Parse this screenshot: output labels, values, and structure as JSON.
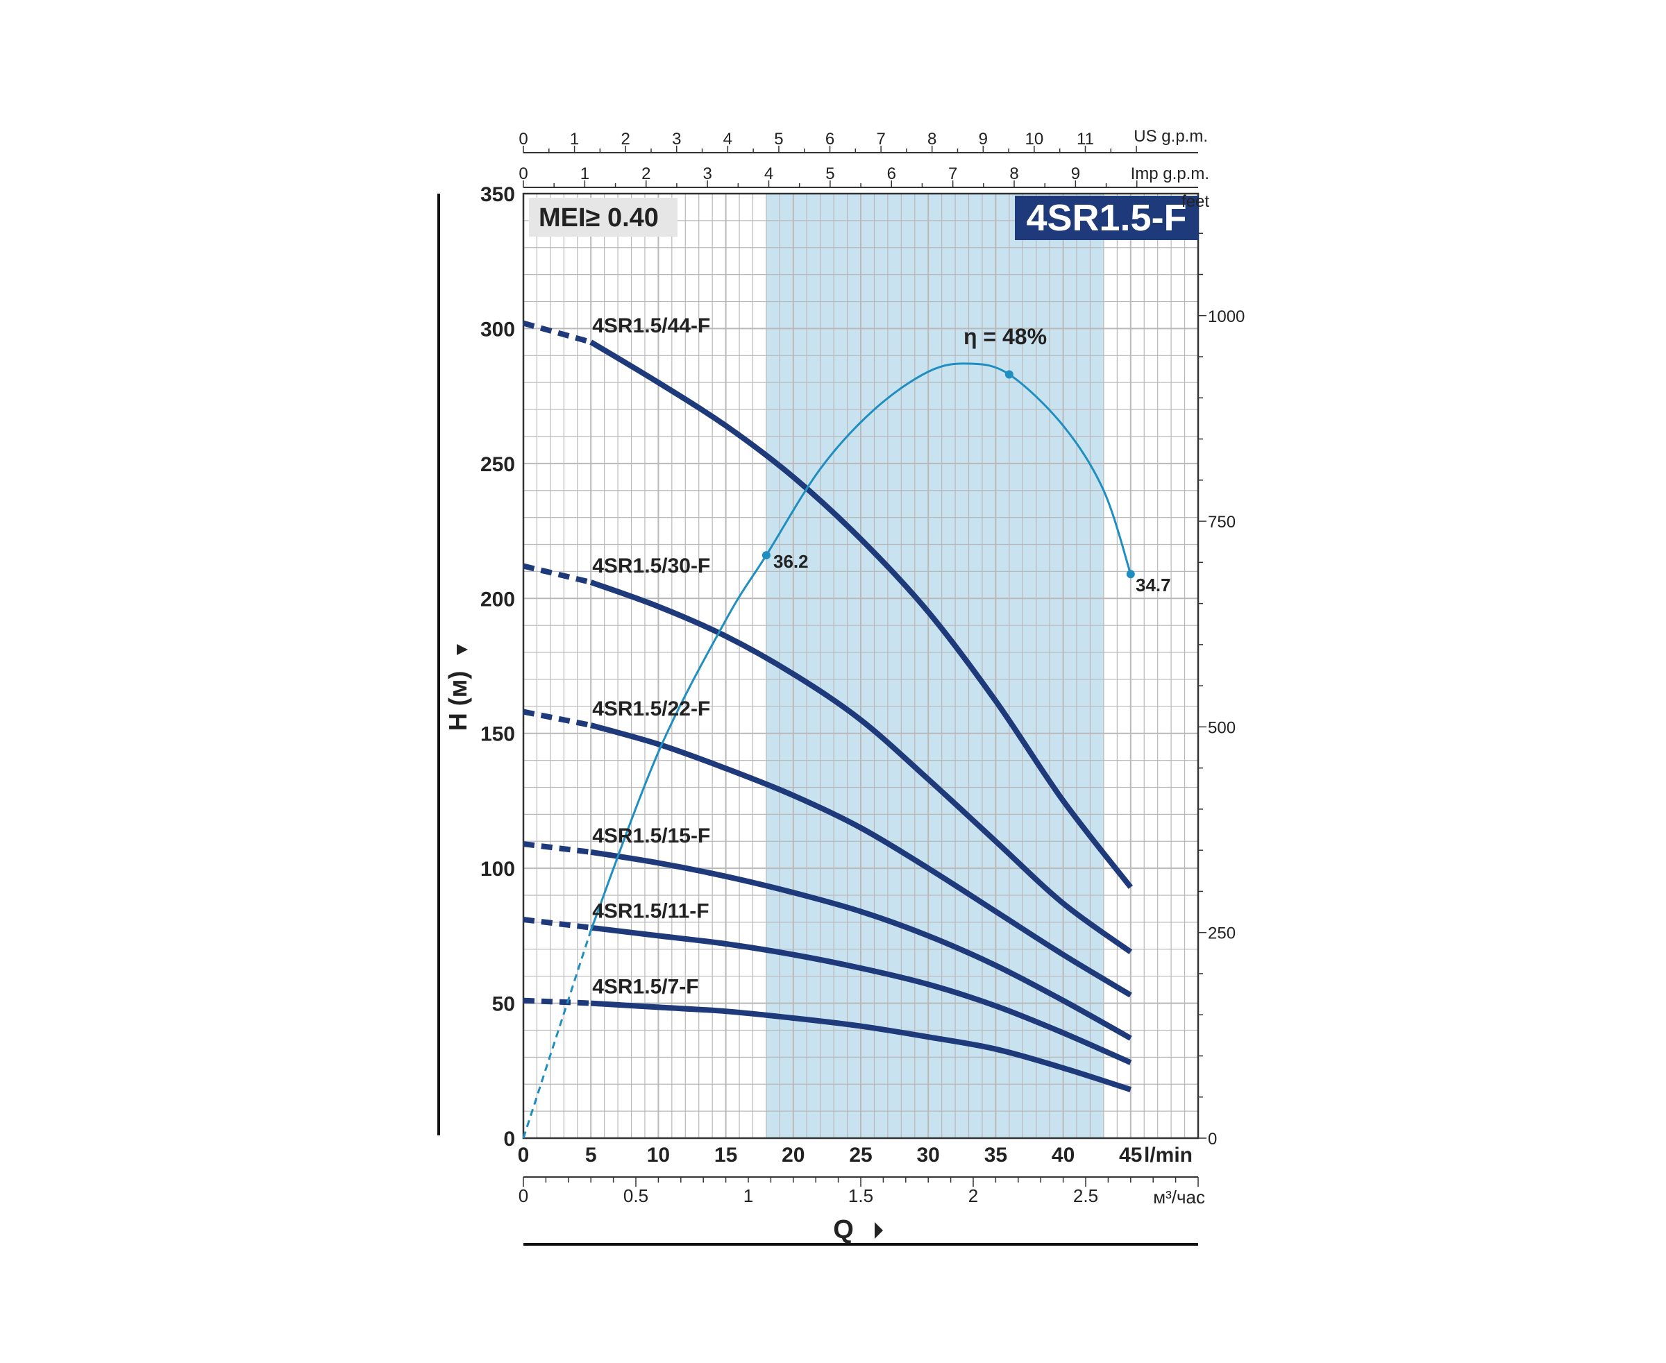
{
  "chart_data": {
    "type": "line",
    "title": "4SR1.5-F",
    "badge": "MEI≥ 0.40",
    "xlabel": "Q",
    "ylabel": "H (м)",
    "xlim": [
      0,
      50
    ],
    "ylim": [
      0,
      350
    ],
    "x_unit": "l/min",
    "x_ticks": [
      0,
      5,
      10,
      15,
      20,
      25,
      30,
      35,
      40,
      45
    ],
    "y_ticks": [
      0,
      50,
      100,
      150,
      200,
      250,
      300,
      350
    ],
    "grid": true,
    "recommended_range": [
      18,
      43
    ],
    "colors": {
      "curve": "#1e3a7b",
      "efficiency": "#1f8ec0",
      "band": "#c8e2f0",
      "grid": "#b9b9b9",
      "title_bg": "#1e3a7b",
      "badge_bg": "#e6e6e6"
    },
    "secondary_axes": {
      "us_gpm": {
        "label": "US g.p.m.",
        "ticks": [
          0,
          1,
          2,
          3,
          4,
          5,
          6,
          7,
          8,
          9,
          10,
          11
        ]
      },
      "imp_gpm": {
        "label": "Imp g.p.m.",
        "ticks": [
          0,
          1,
          2,
          3,
          4,
          5,
          6,
          7,
          8,
          9
        ]
      },
      "feet": {
        "label": "feet",
        "ticks": [
          0,
          250,
          500,
          750,
          1000
        ]
      },
      "m3h": {
        "label": "м³/час",
        "ticks": [
          "0",
          "0.5",
          "1",
          "1.5",
          "2",
          "2.5"
        ]
      }
    },
    "x": [
      0,
      5,
      10,
      15,
      20,
      25,
      30,
      35,
      40,
      45
    ],
    "series": [
      {
        "name": "4SR1.5/44-F",
        "values": [
          302,
          295,
          280,
          264,
          245,
          222,
          195,
          162,
          125,
          93
        ]
      },
      {
        "name": "4SR1.5/30-F",
        "values": [
          212,
          206,
          197,
          186,
          172,
          155,
          133,
          110,
          87,
          69
        ]
      },
      {
        "name": "4SR1.5/22-F",
        "values": [
          158,
          153,
          146,
          137,
          127,
          115,
          100,
          84,
          68,
          53
        ]
      },
      {
        "name": "4SR1.5/15-F",
        "values": [
          109,
          106,
          102,
          97,
          91,
          84,
          75,
          64,
          51,
          37
        ]
      },
      {
        "name": "4SR1.5/11-F",
        "values": [
          81,
          78,
          75,
          72,
          68,
          63,
          57,
          49,
          39,
          28
        ]
      },
      {
        "name": "4SR1.5/7-F",
        "values": [
          51,
          50,
          48.5,
          47,
          44.5,
          41.5,
          37.5,
          33,
          26,
          18
        ]
      }
    ],
    "efficiency": {
      "label": "η = 48%",
      "peak_label": "η = 48%",
      "start_label": "36.2",
      "end_label": "34.7",
      "points": [
        [
          0,
          0
        ],
        [
          5,
          77
        ],
        [
          10,
          143
        ],
        [
          15,
          192
        ],
        [
          18,
          216
        ],
        [
          22,
          248
        ],
        [
          26,
          270
        ],
        [
          30,
          284
        ],
        [
          33,
          287
        ],
        [
          36,
          283
        ],
        [
          40,
          264
        ],
        [
          43,
          240
        ],
        [
          45,
          209
        ]
      ],
      "dashed_until": 5
    }
  }
}
